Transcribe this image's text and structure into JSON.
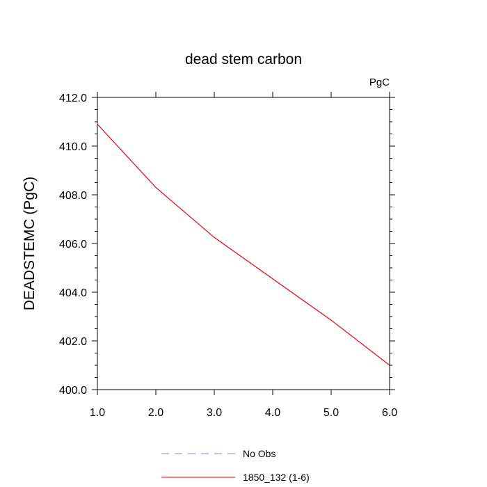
{
  "chart_data": {
    "type": "line",
    "title": "dead stem carbon",
    "units_label": "PgC",
    "xlabel": "",
    "ylabel": "DEADSTEMC  (PgC)",
    "xlim": [
      1.0,
      6.0
    ],
    "ylim": [
      400.0,
      412.0
    ],
    "x_ticks": [
      "1.0",
      "2.0",
      "3.0",
      "4.0",
      "5.0",
      "6.0"
    ],
    "y_ticks": [
      "400.0",
      "402.0",
      "404.0",
      "406.0",
      "408.0",
      "410.0",
      "412.0"
    ],
    "series": [
      {
        "name": "1850_132 (1-6)",
        "color": "#e8000b",
        "dash": "solid",
        "x": [
          1,
          2,
          3,
          4,
          5,
          6
        ],
        "y": [
          410.9,
          408.3,
          406.25,
          404.55,
          402.85,
          401.0
        ]
      }
    ],
    "legend": {
      "placement": "bottom-center",
      "entries": [
        {
          "label": "No Obs",
          "color": "#8080ff",
          "dash": "dashed"
        },
        {
          "label": "1850_132 (1-6)",
          "color": "#e8000b",
          "dash": "solid"
        }
      ]
    },
    "grid": false
  }
}
